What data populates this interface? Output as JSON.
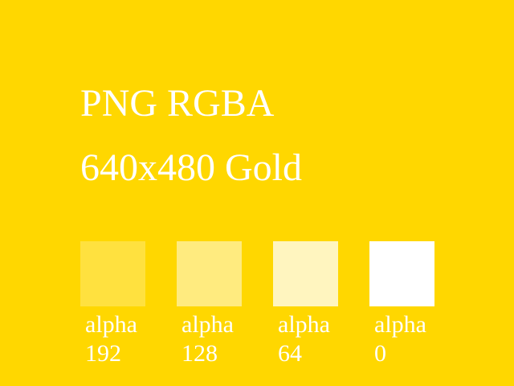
{
  "image": {
    "background_color": "#FFD700",
    "title_lines": [
      "PNG RGBA",
      "640x480 Gold"
    ],
    "swatches": [
      {
        "label": "alpha",
        "value": "192",
        "alpha": 192,
        "color": "#FFFFFF"
      },
      {
        "label": "alpha",
        "value": "128",
        "alpha": 128,
        "color": "#FFFFFF"
      },
      {
        "label": "alpha",
        "value": "64",
        "alpha": 64,
        "color": "#FFFFFF"
      },
      {
        "label": "alpha",
        "value": "0",
        "alpha": 0,
        "color": "#FFFFFF"
      }
    ]
  }
}
